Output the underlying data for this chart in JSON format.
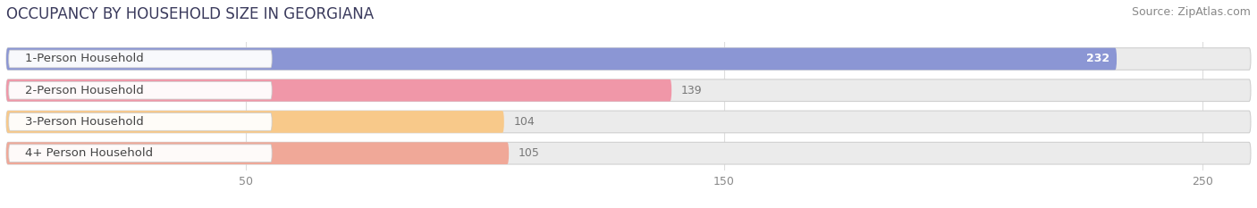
{
  "title": "OCCUPANCY BY HOUSEHOLD SIZE IN GEORGIANA",
  "source": "Source: ZipAtlas.com",
  "categories": [
    "1-Person Household",
    "2-Person Household",
    "3-Person Household",
    "4+ Person Household"
  ],
  "values": [
    232,
    139,
    104,
    105
  ],
  "bar_colors": [
    "#8b96d4",
    "#f097a8",
    "#f8c98a",
    "#f0a898"
  ],
  "background_color": "#ffffff",
  "bar_bg_color": "#ebebeb",
  "xlim_max": 260,
  "xticks": [
    50,
    150,
    250
  ],
  "title_fontsize": 12,
  "source_fontsize": 9,
  "label_fontsize": 9.5,
  "value_fontsize": 9
}
